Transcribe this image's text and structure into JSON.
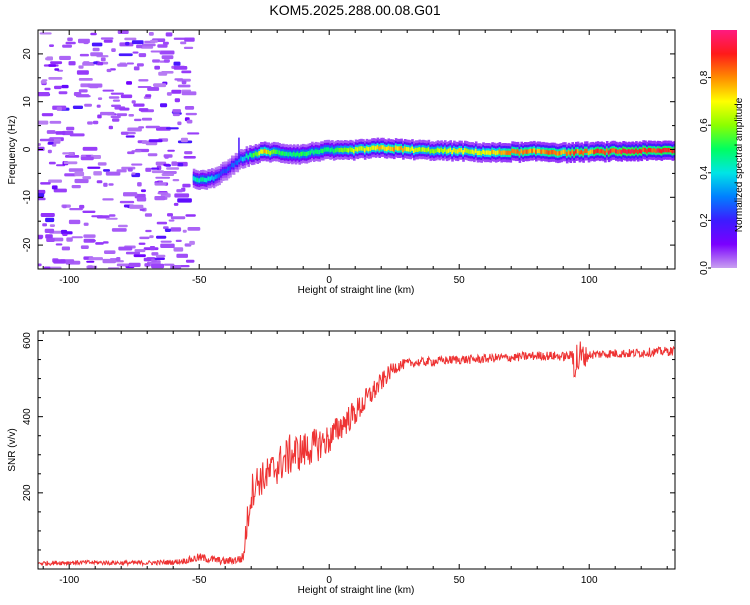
{
  "figure_title": "KOM5.2025.288.00.08.G01",
  "chart_data": [
    {
      "type": "heatmap",
      "title": "KOM5.2025.288.00.08.G01",
      "xlabel": "Height of straight line (km)",
      "ylabel": "Frequency (Hz)",
      "xlim": [
        -112,
        133
      ],
      "ylim": [
        -25,
        25
      ],
      "xticks": [
        -100,
        -50,
        0,
        50,
        100
      ],
      "yticks": [
        -20,
        -10,
        0,
        10,
        20
      ],
      "colorbar": {
        "label": "Normalized spectral amplitude",
        "range": [
          0,
          1
        ],
        "ticks": [
          "0.0",
          "0.2",
          "0.4",
          "0.6",
          "0.8"
        ],
        "tick_values": [
          0.0,
          0.2,
          0.4,
          0.6,
          0.8
        ],
        "colormap": [
          "#c9a0f0",
          "#7a00ff",
          "#3c1cff",
          "#0080ff",
          "#00e5e5",
          "#00ff60",
          "#8cff00",
          "#ffff00",
          "#ff8c00",
          "#ff1a1a",
          "#ff1a80"
        ]
      },
      "noise_region": {
        "x_range": [
          -112,
          -52
        ],
        "freq_range": [
          -25,
          25
        ],
        "amplitude": 0.05
      },
      "ridge": {
        "description": "dominant frequency track",
        "x": [
          -52,
          -48,
          -44,
          -40,
          -36,
          -33,
          -30,
          -25,
          -20,
          -15,
          -10,
          -5,
          0,
          5,
          10,
          15,
          20,
          25,
          30,
          35,
          40,
          45,
          50,
          55,
          60,
          65,
          70,
          75,
          80,
          85,
          90,
          95,
          100,
          105,
          110,
          115,
          120,
          125,
          130,
          133
        ],
        "freq": [
          -6.0,
          -6.5,
          -6.0,
          -4.5,
          -3.0,
          -1.8,
          -1.2,
          -0.5,
          -0.6,
          -0.9,
          -1.0,
          -0.4,
          -0.2,
          -0.3,
          -0.1,
          0.1,
          0.3,
          0.2,
          0.0,
          -0.1,
          -0.2,
          -0.3,
          -0.3,
          -0.5,
          -0.6,
          -0.7,
          -0.5,
          -0.6,
          -0.4,
          -0.5,
          -0.7,
          -0.6,
          -0.5,
          -0.5,
          -0.4,
          -0.4,
          -0.3,
          -0.3,
          -0.2,
          -0.2
        ],
        "amplitude": [
          0.45,
          0.5,
          0.35,
          0.25,
          0.3,
          0.4,
          0.5,
          0.8,
          0.55,
          0.5,
          0.55,
          0.5,
          0.55,
          0.6,
          0.7,
          0.75,
          0.8,
          0.85,
          0.75,
          0.7,
          0.65,
          0.7,
          0.75,
          0.7,
          0.75,
          0.8,
          0.85,
          0.9,
          0.85,
          0.9,
          0.85,
          0.9,
          0.85,
          0.95,
          0.95,
          0.97,
          0.95,
          0.97,
          0.95,
          0.95
        ]
      }
    },
    {
      "type": "line",
      "xlabel": "Height of straight line (km)",
      "ylabel": "SNR (v/v)",
      "xlim": [
        -112,
        133
      ],
      "ylim": [
        0,
        625
      ],
      "xticks": [
        -100,
        -50,
        0,
        50,
        100
      ],
      "yticks": [
        200,
        400,
        600
      ],
      "series": [
        {
          "name": "SNR",
          "color": "#ee3333",
          "x": [
            -112,
            -100,
            -90,
            -80,
            -70,
            -60,
            -55,
            -50,
            -45,
            -40,
            -35,
            -33,
            -32,
            -30,
            -28,
            -25,
            -20,
            -15,
            -10,
            -5,
            0,
            5,
            10,
            15,
            20,
            25,
            30,
            35,
            40,
            45,
            50,
            55,
            60,
            65,
            70,
            75,
            80,
            85,
            90,
            93,
            94,
            95,
            96,
            100,
            105,
            110,
            115,
            120,
            125,
            130,
            133
          ],
          "trend": [
            15,
            17,
            17,
            16,
            16,
            18,
            22,
            30,
            25,
            20,
            25,
            30,
            100,
            200,
            230,
            240,
            270,
            300,
            310,
            325,
            340,
            380,
            410,
            450,
            490,
            530,
            540,
            543,
            545,
            548,
            550,
            550,
            552,
            555,
            555,
            558,
            560,
            560,
            558,
            560,
            560,
            540,
            555,
            562,
            565,
            566,
            566,
            568,
            570,
            572,
            572
          ],
          "noise_amp": [
            6,
            6,
            6,
            6,
            6,
            7,
            8,
            12,
            10,
            10,
            12,
            15,
            40,
            50,
            45,
            45,
            50,
            55,
            50,
            45,
            40,
            38,
            35,
            32,
            25,
            18,
            12,
            12,
            12,
            12,
            12,
            12,
            12,
            12,
            12,
            12,
            12,
            12,
            12,
            12,
            55,
            70,
            55,
            12,
            12,
            12,
            12,
            12,
            12,
            12,
            12
          ]
        }
      ]
    }
  ]
}
